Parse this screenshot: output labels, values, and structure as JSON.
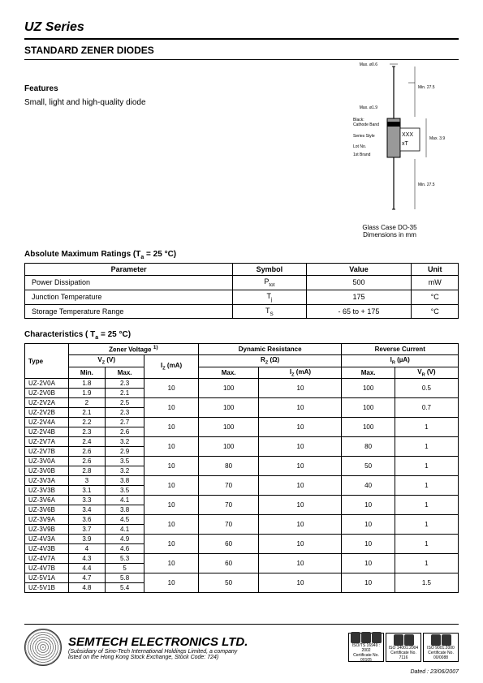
{
  "header": {
    "series": "UZ Series",
    "subtitle": "STANDARD ZENER DIODES"
  },
  "features": {
    "heading": "Features",
    "text": "Small, light and high-quality diode"
  },
  "diagram": {
    "caption_line1": "Glass Case DO-35",
    "caption_line2": "Dimensions in mm",
    "dim_top_dia": "Max. ø0.6",
    "dim_body_dia": "Max. ø1.9",
    "dim_lead_top": "Min. 27.5",
    "dim_body_h": "Max. 3.9",
    "dim_lead_bot": "Min. 27.5",
    "label_black": "Black:",
    "label_cathode": "Cathode Band",
    "label_type": "XXX",
    "label_lot": "xT",
    "note_brand": "1st Brand",
    "note_series": "Series Style",
    "note_lot": "Lot No.",
    "colors": {
      "body": "#999999",
      "band": "#000000",
      "line": "#000000"
    }
  },
  "amr": {
    "heading": "Absolute Maximum Ratings (Tₐ = 25 °C)",
    "columns": [
      "Parameter",
      "Symbol",
      "Value",
      "Unit"
    ],
    "rows": [
      {
        "p": "Power Dissipation",
        "s": "P_tot",
        "v": "500",
        "u": "mW"
      },
      {
        "p": "Junction Temperature",
        "s": "T_j",
        "v": "175",
        "u": "°C"
      },
      {
        "p": "Storage Temperature Range",
        "s": "T_S",
        "v": "- 65 to + 175",
        "u": "°C"
      }
    ]
  },
  "char": {
    "heading": "Characteristics ( Tₐ = 25 °C)",
    "group_headers": {
      "type": "Type",
      "zener": "Zener Voltage ¹⁾",
      "dyn": "Dynamic Resistance",
      "rev": "Reverse Current"
    },
    "sub_headers": {
      "vz": "V_Z (V)",
      "iz": "I_Z (mA)",
      "rz": "R_Z (Ω)",
      "ir": "I_R (µA)",
      "min": "Min.",
      "max": "Max.",
      "izma": "I_Z (mA)",
      "vr": "V_R (V)"
    },
    "rows": [
      [
        "UZ-2V0A",
        "1.8",
        "2.3",
        "10",
        "100",
        "10",
        "100",
        "0.5"
      ],
      [
        "UZ-2V0B",
        "1.9",
        "2.1",
        "",
        "",
        "",
        "",
        ""
      ],
      [
        "UZ-2V2A",
        "2",
        "2.5",
        "10",
        "100",
        "10",
        "100",
        "0.7"
      ],
      [
        "UZ-2V2B",
        "2.1",
        "2.3",
        "",
        "",
        "",
        "",
        ""
      ],
      [
        "UZ-2V4A",
        "2.2",
        "2.7",
        "10",
        "100",
        "10",
        "100",
        "1"
      ],
      [
        "UZ-2V4B",
        "2.3",
        "2.6",
        "",
        "",
        "",
        "",
        ""
      ],
      [
        "UZ-2V7A",
        "2.4",
        "3.2",
        "10",
        "100",
        "10",
        "80",
        "1"
      ],
      [
        "UZ-2V7B",
        "2.6",
        "2.9",
        "",
        "",
        "",
        "",
        ""
      ],
      [
        "UZ-3V0A",
        "2.6",
        "3.5",
        "10",
        "80",
        "10",
        "50",
        "1"
      ],
      [
        "UZ-3V0B",
        "2.8",
        "3.2",
        "",
        "",
        "",
        "",
        ""
      ],
      [
        "UZ-3V3A",
        "3",
        "3.8",
        "10",
        "70",
        "10",
        "40",
        "1"
      ],
      [
        "UZ-3V3B",
        "3.1",
        "3.5",
        "",
        "",
        "",
        "",
        ""
      ],
      [
        "UZ-3V6A",
        "3.3",
        "4.1",
        "10",
        "70",
        "10",
        "10",
        "1"
      ],
      [
        "UZ-3V6B",
        "3.4",
        "3.8",
        "",
        "",
        "",
        "",
        ""
      ],
      [
        "UZ-3V9A",
        "3.6",
        "4.5",
        "10",
        "70",
        "10",
        "10",
        "1"
      ],
      [
        "UZ-3V9B",
        "3.7",
        "4.1",
        "",
        "",
        "",
        "",
        ""
      ],
      [
        "UZ-4V3A",
        "3.9",
        "4.9",
        "10",
        "60",
        "10",
        "10",
        "1"
      ],
      [
        "UZ-4V3B",
        "4",
        "4.6",
        "",
        "",
        "",
        "",
        ""
      ],
      [
        "UZ-4V7A",
        "4.3",
        "5.3",
        "10",
        "60",
        "10",
        "10",
        "1"
      ],
      [
        "UZ-4V7B",
        "4.4",
        "5",
        "",
        "",
        "",
        "",
        ""
      ],
      [
        "UZ-5V1A",
        "4.7",
        "5.8",
        "10",
        "50",
        "10",
        "10",
        "1.5"
      ],
      [
        "UZ-5V1B",
        "4.8",
        "5.4",
        "",
        "",
        "",
        "",
        ""
      ]
    ]
  },
  "footer": {
    "company": "SEMTECH ELECTRONICS LTD.",
    "sub1": "(Subsidiary of Sino-Tech International Holdings Limited, a company",
    "sub2": "listed on the Hong Kong Stock Exchange, Stock Code: 724)",
    "certs": [
      {
        "std": "ISO/TS 16949 : 2002",
        "num": "Certificate No. 00105"
      },
      {
        "std": "ISO 14001:2004",
        "num": "Certificate No. 7116"
      },
      {
        "std": "ISO 9001:2000",
        "num": "Certificate No. 00/0088"
      }
    ],
    "dated": "Dated : 23/06/2007"
  }
}
